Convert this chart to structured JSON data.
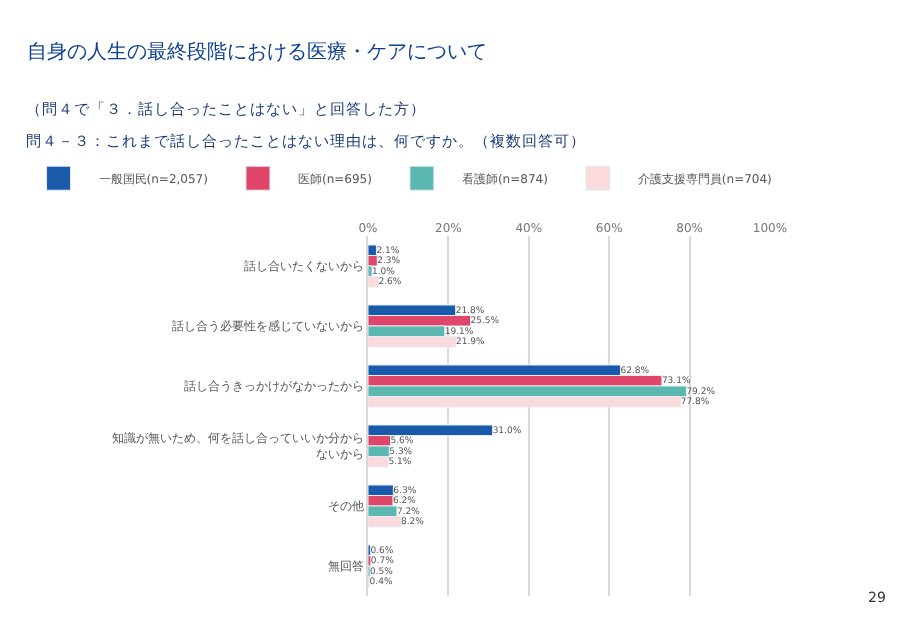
{
  "chart_data": {
    "type": "bar",
    "orientation": "horizontal",
    "title": "自身の人生の最終段階における医療・ケアについて",
    "subtitle": "問４－３：これまで話し合ったことはない理由は、何ですか。（複数回答可）",
    "annotations": [
      "（問４で「３．話し合ったことはない」と回答した方）",
      "29"
    ],
    "categories": [
      "話し合いたくないから",
      "話し合う必要性を感じていないから",
      "話し合うきっかけがなかったから",
      "知識が無いため、何を話し合っていいか分からないから",
      "その他",
      "無回答"
    ],
    "series": [
      {
        "name": "一般国民(n=2,057)",
        "color": "#1a5aab",
        "values": [
          2.1,
          21.8,
          62.8,
          31.0,
          6.3,
          0.6
        ],
        "value_labels": [
          "2.1%",
          "21.8%",
          "62.8%",
          "31.0%",
          "6.3%",
          "0.6%"
        ]
      },
      {
        "name": "医師(n=695)",
        "color": "#e0456a",
        "values": [
          2.3,
          25.5,
          73.1,
          5.6,
          6.2,
          0.7
        ],
        "value_labels": [
          "2.3%",
          "25.5%",
          "73.1%",
          "5.6%",
          "6.2%",
          "0.7%"
        ]
      },
      {
        "name": "看護師(n=874)",
        "color": "#5ab8b0",
        "values": [
          1.0,
          19.1,
          79.2,
          5.3,
          7.2,
          0.5
        ],
        "value_labels": [
          "1.0%",
          "19.1%",
          "79.2%",
          "5.3%",
          "7.2%",
          "0.5%"
        ]
      },
      {
        "name": "介護支援専門員(n=704)",
        "color": "#fadadd",
        "values": [
          2.6,
          21.9,
          77.8,
          5.1,
          8.2,
          0.4
        ],
        "value_labels": [
          "2.6%",
          "21.9%",
          "77.8%",
          "5.1%",
          "8.2%",
          "0.4%"
        ]
      }
    ],
    "xlim": [
      0,
      100
    ],
    "xticks": [
      {
        "value": 0,
        "label": "0%"
      },
      {
        "value": 20,
        "label": "20%"
      },
      {
        "value": 40,
        "label": "40%"
      },
      {
        "value": 60,
        "label": "60%"
      },
      {
        "value": 80,
        "label": "80%"
      },
      {
        "value": 100,
        "label": "100%"
      }
    ],
    "grid": "x",
    "legend": "top"
  }
}
